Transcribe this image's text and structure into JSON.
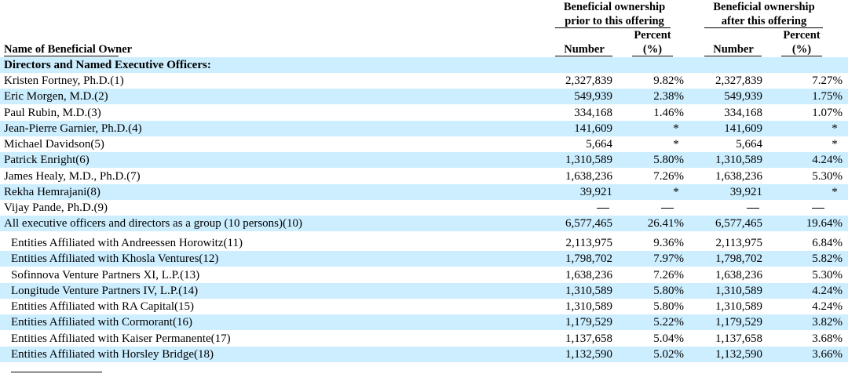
{
  "header": {
    "group_prior": [
      "Beneficial ownership",
      "prior to this offering"
    ],
    "group_after": [
      "Beneficial ownership",
      "after this offering"
    ],
    "col_name": "Name of Beneficial Owner",
    "col_number": "Number",
    "col_percent": [
      "Percent",
      "(%)"
    ]
  },
  "section_title": "Directors and Named Executive Officers:",
  "rows": [
    {
      "name": "Kristen Fortney, Ph.D.",
      "fn": "(1)",
      "n1": "2,327,839",
      "p1": "9.82%",
      "n2": "2,327,839",
      "p2": "7.27%"
    },
    {
      "name": "Eric Morgen, M.D.",
      "fn": "(2)",
      "n1": "549,939",
      "p1": "2.38%",
      "n2": "549,939",
      "p2": "1.75%"
    },
    {
      "name": "Paul Rubin, M.D.",
      "fn": "(3)",
      "n1": "334,168",
      "p1": "1.46%",
      "n2": "334,168",
      "p2": "1.07%"
    },
    {
      "name": "Jean-Pierre Garnier, Ph.D.",
      "fn": "(4)",
      "n1": "141,609",
      "p1": "*",
      "n2": "141,609",
      "p2": "*"
    },
    {
      "name": "Michael Davidson",
      "fn": "(5)",
      "n1": "5,664",
      "p1": "*",
      "n2": "5,664",
      "p2": "*"
    },
    {
      "name": "Patrick Enright",
      "fn": "(6)",
      "n1": "1,310,589",
      "p1": "5.80%",
      "n2": "1,310,589",
      "p2": "4.24%"
    },
    {
      "name": "James Healy, M.D., Ph.D.",
      "fn": "(7)",
      "n1": "1,638,236",
      "p1": "7.26%",
      "n2": "1,638,236",
      "p2": "5.30%"
    },
    {
      "name": "Rekha Hemrajani",
      "fn": "(8)",
      "n1": "39,921",
      "p1": "*",
      "n2": "39,921",
      "p2": "*"
    },
    {
      "name": "Vijay Pande, Ph.D.",
      "fn": "(9)",
      "n1": "—",
      "p1": "—",
      "n2": "—",
      "p2": "—"
    },
    {
      "name": "All executive officers and directors as a group (10 persons)",
      "fn": "(10)",
      "n1": "6,577,465",
      "p1": "26.41%",
      "n2": "6,577,465",
      "p2": "19.64%"
    }
  ],
  "holders": [
    {
      "name": "Entities Affiliated with Andreessen Horowitz",
      "fn": "(11)",
      "n1": "2,113,975",
      "p1": "9.36%",
      "n2": "2,113,975",
      "p2": "6.84%"
    },
    {
      "name": "Entities Affiliated with Khosla Ventures",
      "fn": "(12)",
      "n1": "1,798,702",
      "p1": "7.97%",
      "n2": "1,798,702",
      "p2": "5.82%"
    },
    {
      "name": "Sofinnova Venture Partners XI, L.P.",
      "fn": "(13)",
      "n1": "1,638,236",
      "p1": "7.26%",
      "n2": "1,638,236",
      "p2": "5.30%"
    },
    {
      "name": "Longitude Venture Partners IV, L.P.",
      "fn": "(14)",
      "n1": "1,310,589",
      "p1": "5.80%",
      "n2": "1,310,589",
      "p2": "4.24%"
    },
    {
      "name": "Entities Affiliated with RA Capital",
      "fn": "(15)",
      "n1": "1,310,589",
      "p1": "5.80%",
      "n2": "1,310,589",
      "p2": "4.24%"
    },
    {
      "name": "Entities Affiliated with Cormorant",
      "fn": "(16)",
      "n1": "1,179,529",
      "p1": "5.22%",
      "n2": "1,179,529",
      "p2": "3.82%"
    },
    {
      "name": "Entities Affiliated with Kaiser Permanente",
      "fn": "(17)",
      "n1": "1,137,658",
      "p1": "5.04%",
      "n2": "1,137,658",
      "p2": "3.68%"
    },
    {
      "name": "Entities Affiliated with Horsley Bridge",
      "fn": "(18)",
      "n1": "1,132,590",
      "p1": "5.02%",
      "n2": "1,132,590",
      "p2": "3.66%"
    }
  ],
  "colors": {
    "row_shade": "#cceeff",
    "text": "#000000"
  }
}
